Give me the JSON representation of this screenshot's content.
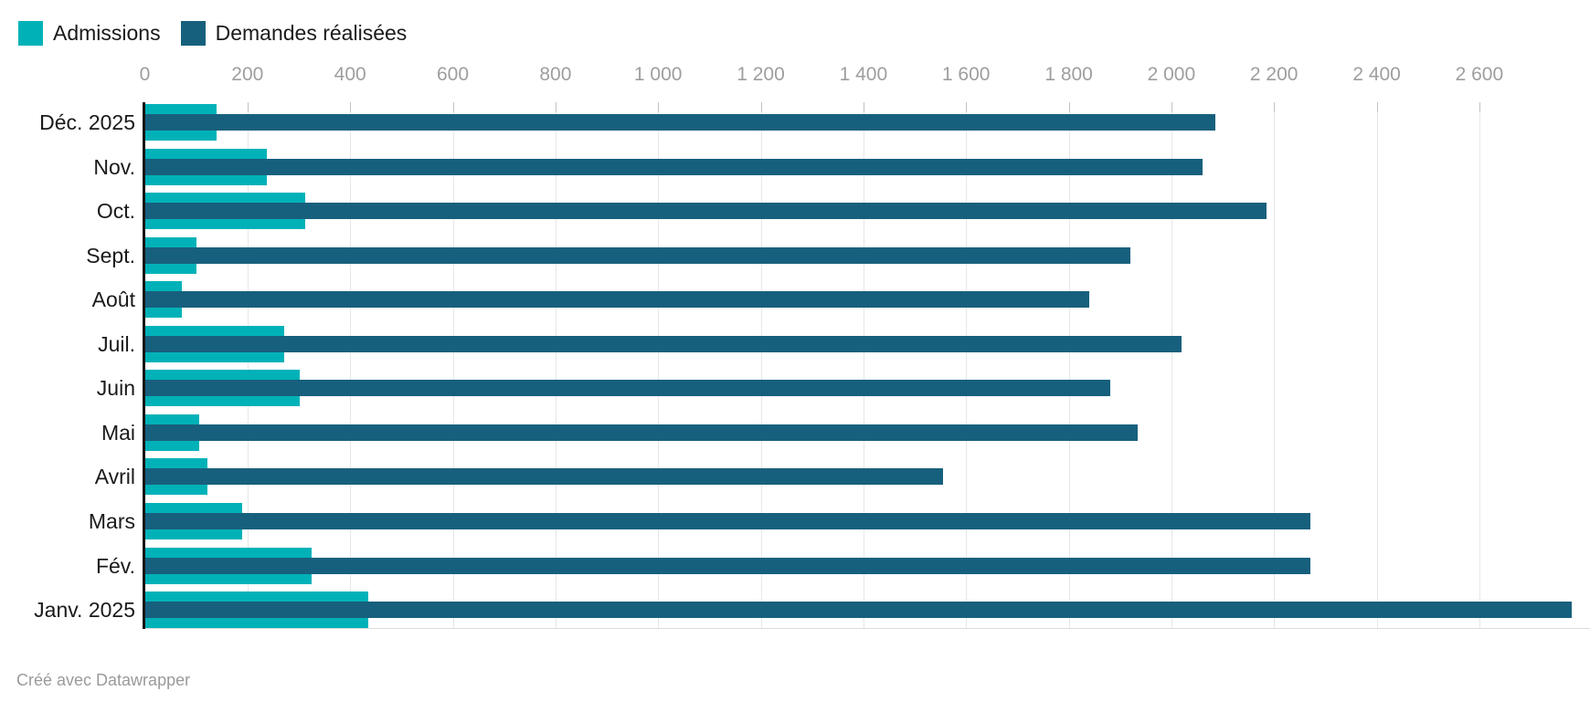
{
  "legend": {
    "items": [
      {
        "id": "admissions",
        "label": "Admissions",
        "color": "#00b2b8"
      },
      {
        "id": "demandes",
        "label": "Demandes réalisées",
        "color": "#17607d"
      }
    ]
  },
  "footer": {
    "credit": "Créé avec Datawrapper"
  },
  "chart_data": {
    "type": "bar",
    "orientation": "horizontal",
    "bar_style": "overlay-centered",
    "grid": "vertical",
    "legend_position": "top-left",
    "categories": [
      "Déc. 2025",
      "Nov.",
      "Oct.",
      "Sept.",
      "Août",
      "Juil.",
      "Juin",
      "Mai",
      "Avril",
      "Mars",
      "Fév.",
      "Janv. 2025"
    ],
    "series": [
      {
        "name": "Admissions",
        "color": "#00b2b8",
        "values": [
          140,
          237,
          312,
          101,
          72,
          271,
          302,
          105,
          122,
          190,
          324,
          435
        ]
      },
      {
        "name": "Demandes réalisées",
        "color": "#17607d",
        "values": [
          2085,
          2060,
          2185,
          1920,
          1840,
          2020,
          1880,
          1935,
          1555,
          2270,
          2270,
          2780
        ]
      }
    ],
    "x_axis": {
      "min": 0,
      "max": 2820,
      "tick_step": 200,
      "ticks": [
        {
          "value": 0,
          "label": "0"
        },
        {
          "value": 200,
          "label": "200"
        },
        {
          "value": 400,
          "label": "400"
        },
        {
          "value": 600,
          "label": "600"
        },
        {
          "value": 800,
          "label": "800"
        },
        {
          "value": 1000,
          "label": "1 000"
        },
        {
          "value": 1200,
          "label": "1 200"
        },
        {
          "value": 1400,
          "label": "1 400"
        },
        {
          "value": 1600,
          "label": "1 600"
        },
        {
          "value": 1800,
          "label": "1 800"
        },
        {
          "value": 2000,
          "label": "2 000"
        },
        {
          "value": 2200,
          "label": "2 200"
        },
        {
          "value": 2400,
          "label": "2 400"
        },
        {
          "value": 2600,
          "label": "2 600"
        }
      ]
    }
  }
}
